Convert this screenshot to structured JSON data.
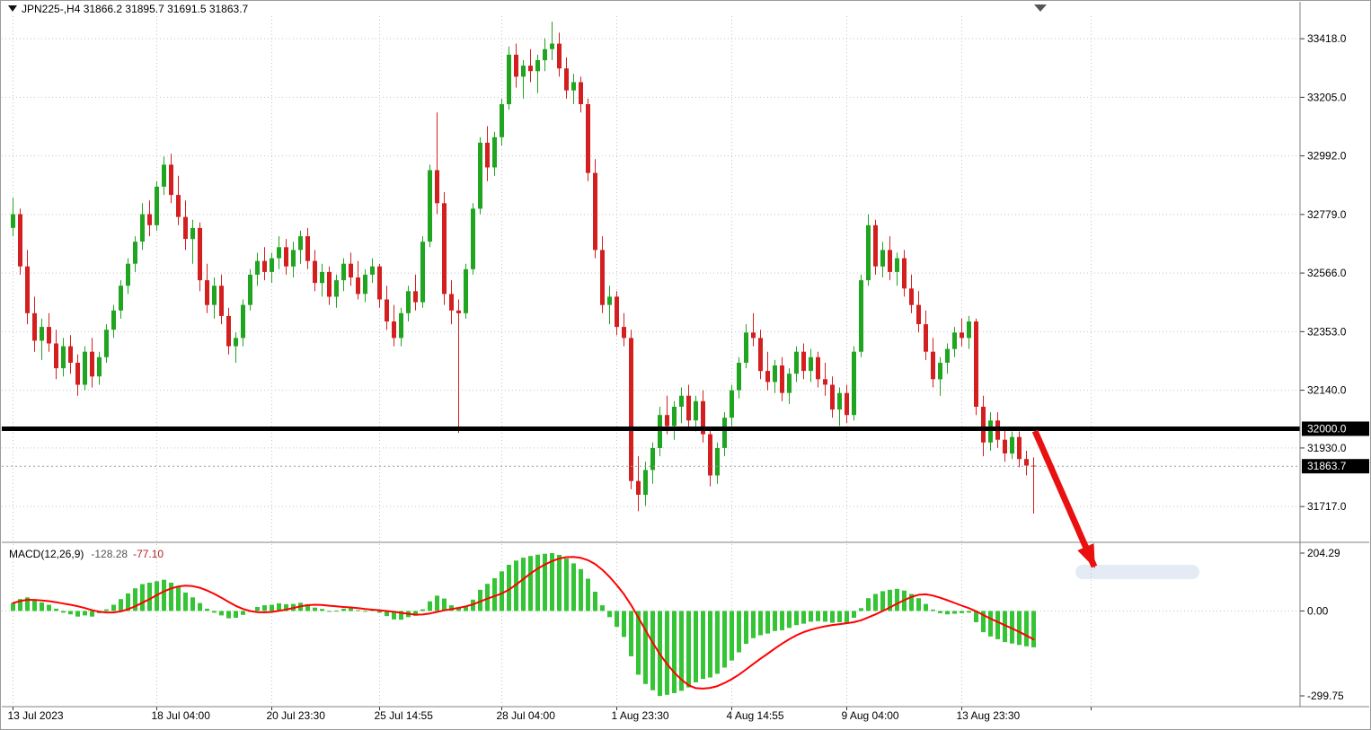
{
  "header": {
    "symbol_info": "JPN225-,H4 31866.2 31895.7 31691.5 31863.7",
    "symbol": "JPN225-",
    "timeframe": "H4",
    "open": "31866.2",
    "high": "31895.7",
    "low": "31691.5",
    "close": "31863.7"
  },
  "colors": {
    "bull": "#1fa51f",
    "bear": "#d31f1f",
    "hist": "#35c435",
    "signal": "#ff0000",
    "grid": "#c4c4c4",
    "arrow": "#e81010",
    "level": "#000000",
    "badge_bg": "#000000",
    "badge_text": "#ffffff"
  },
  "chart_data": {
    "type": "candlestick",
    "title": "JPN225-,H4",
    "price_axis": {
      "labels": [
        "33418.0",
        "33205.0",
        "32992.0",
        "32779.0",
        "32566.0",
        "32353.0",
        "32140.0",
        "31930.0",
        "31717.0"
      ],
      "level_value": 32000.0,
      "level_label": "32000.0",
      "current_value": 31863.7,
      "current_label": "31863.7",
      "ylim": [
        31600,
        33500
      ]
    },
    "time_axis": {
      "ticks": [
        {
          "label": "13 Jul 2023",
          "bar": 0
        },
        {
          "label": "18 Jul 04:00",
          "bar": 20
        },
        {
          "label": "20 Jul 23:30",
          "bar": 36
        },
        {
          "label": "25 Jul 14:55",
          "bar": 51
        },
        {
          "label": "28 Jul 04:00",
          "bar": 68
        },
        {
          "label": "1 Aug 23:30",
          "bar": 84
        },
        {
          "label": "4 Aug 14:55",
          "bar": 100
        },
        {
          "label": "9 Aug 04:00",
          "bar": 116
        },
        {
          "label": "13 Aug 23:30",
          "bar": 132
        },
        {
          "label": "",
          "bar": 150
        }
      ]
    },
    "candles": [
      [
        32730,
        32840,
        32700,
        32780
      ],
      [
        32780,
        32800,
        32560,
        32590
      ],
      [
        32590,
        32650,
        32380,
        32420
      ],
      [
        32420,
        32480,
        32280,
        32320
      ],
      [
        32320,
        32400,
        32250,
        32370
      ],
      [
        32370,
        32420,
        32280,
        32310
      ],
      [
        32310,
        32360,
        32180,
        32220
      ],
      [
        32220,
        32330,
        32190,
        32300
      ],
      [
        32300,
        32340,
        32200,
        32240
      ],
      [
        32240,
        32270,
        32120,
        32160
      ],
      [
        32160,
        32300,
        32140,
        32280
      ],
      [
        32280,
        32330,
        32150,
        32190
      ],
      [
        32190,
        32280,
        32160,
        32260
      ],
      [
        32260,
        32380,
        32240,
        32360
      ],
      [
        32360,
        32450,
        32330,
        32430
      ],
      [
        32430,
        32540,
        32400,
        32520
      ],
      [
        32520,
        32620,
        32490,
        32600
      ],
      [
        32600,
        32700,
        32570,
        32680
      ],
      [
        32680,
        32820,
        32650,
        32780
      ],
      [
        32780,
        32830,
        32700,
        32740
      ],
      [
        32740,
        32900,
        32720,
        32880
      ],
      [
        32880,
        32990,
        32850,
        32960
      ],
      [
        32960,
        33000,
        32820,
        32850
      ],
      [
        32850,
        32920,
        32740,
        32770
      ],
      [
        32770,
        32830,
        32650,
        32690
      ],
      [
        32690,
        32760,
        32600,
        32730
      ],
      [
        32730,
        32750,
        32500,
        32540
      ],
      [
        32540,
        32600,
        32420,
        32450
      ],
      [
        32450,
        32550,
        32400,
        32520
      ],
      [
        32520,
        32560,
        32380,
        32410
      ],
      [
        32410,
        32440,
        32270,
        32300
      ],
      [
        32300,
        32350,
        32240,
        32330
      ],
      [
        32330,
        32470,
        32300,
        32450
      ],
      [
        32450,
        32580,
        32430,
        32560
      ],
      [
        32560,
        32640,
        32520,
        32610
      ],
      [
        32610,
        32660,
        32540,
        32570
      ],
      [
        32570,
        32640,
        32530,
        32620
      ],
      [
        32620,
        32700,
        32580,
        32660
      ],
      [
        32660,
        32690,
        32560,
        32590
      ],
      [
        32590,
        32680,
        32550,
        32650
      ],
      [
        32650,
        32720,
        32600,
        32700
      ],
      [
        32700,
        32730,
        32580,
        32610
      ],
      [
        32610,
        32650,
        32500,
        32530
      ],
      [
        32530,
        32600,
        32480,
        32570
      ],
      [
        32570,
        32590,
        32450,
        32480
      ],
      [
        32480,
        32560,
        32440,
        32540
      ],
      [
        32540,
        32620,
        32500,
        32600
      ],
      [
        32600,
        32640,
        32520,
        32550
      ],
      [
        32550,
        32610,
        32470,
        32490
      ],
      [
        32490,
        32580,
        32460,
        32560
      ],
      [
        32560,
        32620,
        32530,
        32590
      ],
      [
        32590,
        32600,
        32440,
        32470
      ],
      [
        32470,
        32520,
        32360,
        32390
      ],
      [
        32390,
        32450,
        32300,
        32330
      ],
      [
        32330,
        32440,
        32300,
        32420
      ],
      [
        32420,
        32520,
        32390,
        32500
      ],
      [
        32500,
        32560,
        32430,
        32460
      ],
      [
        32460,
        32700,
        32440,
        32680
      ],
      [
        32680,
        32960,
        32660,
        32940
      ],
      [
        32940,
        33150,
        32780,
        32820
      ],
      [
        32820,
        32860,
        32450,
        32490
      ],
      [
        32490,
        32540,
        32380,
        32430
      ],
      [
        32430,
        32470,
        31985,
        32420
      ],
      [
        32420,
        32600,
        32400,
        32580
      ],
      [
        32580,
        32820,
        32560,
        32800
      ],
      [
        32800,
        33060,
        32780,
        33040
      ],
      [
        33040,
        33100,
        32900,
        32950
      ],
      [
        32950,
        33080,
        32920,
        33060
      ],
      [
        33060,
        33200,
        33030,
        33180
      ],
      [
        33180,
        33390,
        33160,
        33360
      ],
      [
        33360,
        33400,
        33240,
        33280
      ],
      [
        33280,
        33340,
        33200,
        33320
      ],
      [
        33320,
        33380,
        33260,
        33300
      ],
      [
        33300,
        33360,
        33220,
        33340
      ],
      [
        33340,
        33420,
        33300,
        33380
      ],
      [
        33380,
        33480,
        33340,
        33400
      ],
      [
        33400,
        33440,
        33280,
        33310
      ],
      [
        33310,
        33350,
        33200,
        33230
      ],
      [
        33230,
        33290,
        33180,
        33260
      ],
      [
        33260,
        33280,
        33150,
        33180
      ],
      [
        33180,
        33200,
        32900,
        32930
      ],
      [
        32930,
        32980,
        32620,
        32650
      ],
      [
        32650,
        32700,
        32420,
        32450
      ],
      [
        32450,
        32520,
        32380,
        32480
      ],
      [
        32480,
        32500,
        32340,
        32370
      ],
      [
        32370,
        32420,
        32300,
        32330
      ],
      [
        32330,
        32360,
        31780,
        31810
      ],
      [
        31810,
        31900,
        31700,
        31760
      ],
      [
        31760,
        31880,
        31720,
        31850
      ],
      [
        31850,
        31950,
        31800,
        31930
      ],
      [
        31930,
        32080,
        31900,
        32050
      ],
      [
        32050,
        32120,
        31980,
        32010
      ],
      [
        32010,
        32100,
        31960,
        32080
      ],
      [
        32080,
        32150,
        32020,
        32120
      ],
      [
        32120,
        32160,
        32000,
        32030
      ],
      [
        32030,
        32120,
        31990,
        32100
      ],
      [
        32100,
        32140,
        31950,
        31980
      ],
      [
        31980,
        32000,
        31790,
        31830
      ],
      [
        31830,
        31950,
        31800,
        31930
      ],
      [
        31930,
        32060,
        31900,
        32040
      ],
      [
        32040,
        32160,
        32010,
        32140
      ],
      [
        32140,
        32260,
        32110,
        32240
      ],
      [
        32240,
        32380,
        32220,
        32350
      ],
      [
        32350,
        32420,
        32300,
        32330
      ],
      [
        32330,
        32360,
        32180,
        32210
      ],
      [
        32210,
        32280,
        32140,
        32170
      ],
      [
        32170,
        32250,
        32130,
        32230
      ],
      [
        32230,
        32260,
        32100,
        32130
      ],
      [
        32130,
        32220,
        32090,
        32200
      ],
      [
        32200,
        32300,
        32170,
        32280
      ],
      [
        32280,
        32310,
        32180,
        32210
      ],
      [
        32210,
        32290,
        32170,
        32260
      ],
      [
        32260,
        32280,
        32150,
        32180
      ],
      [
        32180,
        32240,
        32120,
        32160
      ],
      [
        32160,
        32190,
        32040,
        32070
      ],
      [
        32070,
        32150,
        32010,
        32130
      ],
      [
        32130,
        32160,
        32020,
        32050
      ],
      [
        32050,
        32300,
        32030,
        32280
      ],
      [
        32280,
        32560,
        32260,
        32540
      ],
      [
        32540,
        32780,
        32520,
        32740
      ],
      [
        32740,
        32760,
        32560,
        32590
      ],
      [
        32590,
        32680,
        32550,
        32650
      ],
      [
        32650,
        32700,
        32540,
        32570
      ],
      [
        32570,
        32640,
        32520,
        32620
      ],
      [
        32620,
        32650,
        32480,
        32510
      ],
      [
        32510,
        32560,
        32420,
        32450
      ],
      [
        32450,
        32500,
        32350,
        32380
      ],
      [
        32380,
        32430,
        32250,
        32280
      ],
      [
        32280,
        32330,
        32150,
        32180
      ],
      [
        32180,
        32260,
        32120,
        32240
      ],
      [
        32240,
        32310,
        32200,
        32290
      ],
      [
        32290,
        32370,
        32260,
        32350
      ],
      [
        32350,
        32400,
        32300,
        32330
      ],
      [
        32330,
        32410,
        32290,
        32390
      ],
      [
        32390,
        32400,
        32050,
        32080
      ],
      [
        32080,
        32120,
        31900,
        31950
      ],
      [
        31950,
        32060,
        31920,
        32030
      ],
      [
        32030,
        32060,
        31930,
        31960
      ],
      [
        31960,
        32000,
        31880,
        31910
      ],
      [
        31910,
        31990,
        31890,
        31970
      ],
      [
        31970,
        31990,
        31860,
        31890
      ],
      [
        31890,
        31920,
        31830,
        31866.2
      ],
      [
        31866.2,
        31895.7,
        31691.5,
        31863.7
      ]
    ],
    "indicator": {
      "name": "MACD(12,26,9)",
      "value_macd": "-128.28",
      "value_signal": "-77.10",
      "signal_period": 9,
      "axis_labels": [
        "204.29",
        "0.00",
        "-299.75"
      ],
      "ylim": [
        -299.75,
        204.29
      ],
      "histogram": [
        28,
        42,
        48,
        38,
        30,
        22,
        8,
        -6,
        -12,
        -20,
        -16,
        -20,
        -8,
        6,
        22,
        42,
        62,
        80,
        95,
        100,
        105,
        110,
        100,
        85,
        65,
        48,
        28,
        8,
        -6,
        -16,
        -26,
        -24,
        -14,
        0,
        14,
        20,
        22,
        27,
        24,
        25,
        29,
        24,
        12,
        7,
        -3,
        1,
        8,
        10,
        3,
        -1,
        5,
        -6,
        -18,
        -30,
        -31,
        -22,
        -17,
        6,
        34,
        54,
        44,
        20,
        10,
        18,
        40,
        75,
        96,
        116,
        140,
        163,
        178,
        188,
        194,
        199,
        202,
        204.29,
        198,
        185,
        168,
        148,
        114,
        68,
        20,
        -22,
        -56,
        -92,
        -160,
        -225,
        -258,
        -280,
        -299.75,
        -296,
        -290,
        -282,
        -270,
        -252,
        -240,
        -235,
        -222,
        -200,
        -175,
        -146,
        -116,
        -96,
        -86,
        -80,
        -71,
        -68,
        -60,
        -50,
        -45,
        -38,
        -36,
        -38,
        -42,
        -40,
        -42,
        -24,
        10,
        45,
        60,
        70,
        75,
        78,
        72,
        60,
        45,
        25,
        5,
        -8,
        -12,
        -10,
        -8,
        -6,
        -40,
        -75,
        -90,
        -100,
        -110,
        -115,
        -120,
        -125,
        -128.28
      ]
    },
    "annotations": {
      "level_line_price": 32000.0,
      "arrow": {
        "type": "trend-arrow",
        "direction": "down-right",
        "color": "#e81010"
      }
    }
  }
}
